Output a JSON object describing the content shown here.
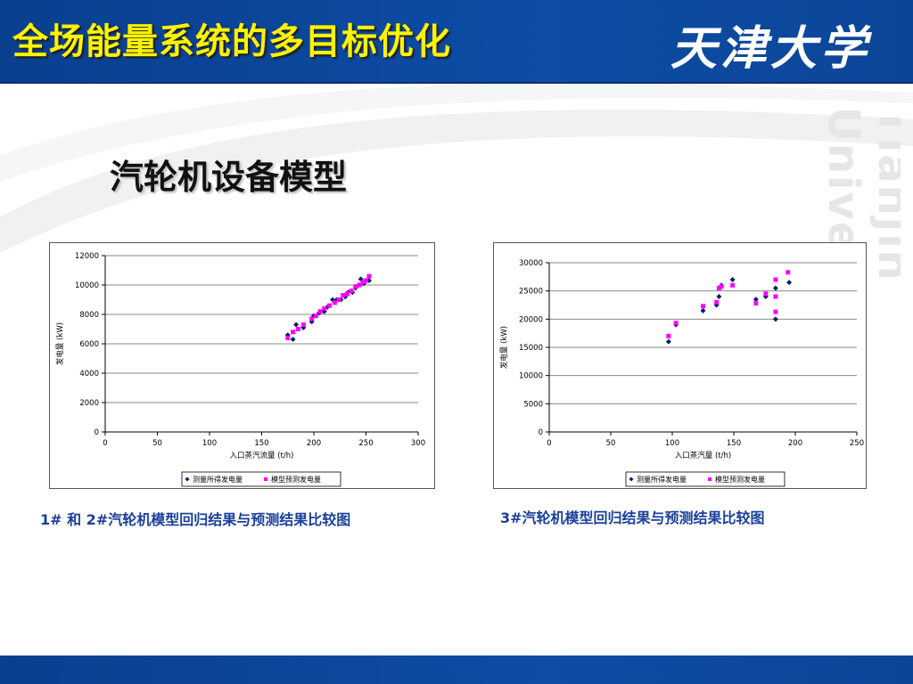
{
  "slide": {
    "title": "全场能量系统的多目标优化",
    "logo_text": "天津大学",
    "watermark_text": "Tianjin University",
    "subtitle": "汽轮机设备模型"
  },
  "captions": {
    "left": "1# 和 2#汽轮机模型回归结果与预测结果比较图",
    "right": "3#汽轮机模型回归结果与预测结果比较图"
  },
  "colors": {
    "header": "#0d4da6",
    "title": "#fff200",
    "caption": "#1a3f9c",
    "series_measured": "#0b1f6b",
    "series_predicted": "#ff00ff"
  },
  "chart_data": [
    {
      "type": "scatter",
      "title": "",
      "xlabel": "入口蒸汽流量 (t/h)",
      "ylabel": "发电量 (kW)",
      "xlim": [
        0,
        300
      ],
      "ylim": [
        0,
        12000
      ],
      "xticks": [
        0,
        50,
        100,
        150,
        200,
        250,
        300
      ],
      "yticks": [
        0,
        2000,
        4000,
        6000,
        8000,
        10000,
        12000
      ],
      "grid": "horizontal",
      "legend_position": "bottom-right",
      "series": [
        {
          "name": "测量所得发电量",
          "marker": "diamond",
          "points": [
            [
              175,
              6600
            ],
            [
              180,
              6300
            ],
            [
              183,
              7300
            ],
            [
              190,
              7100
            ],
            [
              198,
              7500
            ],
            [
              200,
              7900
            ],
            [
              205,
              8100
            ],
            [
              210,
              8200
            ],
            [
              213,
              8500
            ],
            [
              218,
              9000
            ],
            [
              222,
              9000
            ],
            [
              226,
              9000
            ],
            [
              230,
              9200
            ],
            [
              233,
              9500
            ],
            [
              237,
              9500
            ],
            [
              240,
              9800
            ],
            [
              243,
              10000
            ],
            [
              245,
              10400
            ],
            [
              248,
              10100
            ],
            [
              253,
              10300
            ]
          ]
        },
        {
          "name": "模型预测发电量",
          "marker": "square",
          "points": [
            [
              175,
              6400
            ],
            [
              180,
              6800
            ],
            [
              185,
              7000
            ],
            [
              190,
              7300
            ],
            [
              198,
              7700
            ],
            [
              202,
              7900
            ],
            [
              206,
              8200
            ],
            [
              210,
              8400
            ],
            [
              215,
              8600
            ],
            [
              220,
              8800
            ],
            [
              224,
              9000
            ],
            [
              228,
              9300
            ],
            [
              232,
              9400
            ],
            [
              236,
              9600
            ],
            [
              240,
              9900
            ],
            [
              244,
              10000
            ],
            [
              247,
              10200
            ],
            [
              250,
              10300
            ],
            [
              253,
              10600
            ]
          ]
        }
      ]
    },
    {
      "type": "scatter",
      "title": "",
      "xlabel": "入口蒸汽量 (t/h)",
      "ylabel": "发电量 (kW)",
      "xlim": [
        0,
        250
      ],
      "ylim": [
        0,
        30000
      ],
      "xticks": [
        0,
        50,
        100,
        150,
        200,
        250
      ],
      "yticks": [
        0,
        5000,
        10000,
        15000,
        20000,
        25000,
        30000
      ],
      "grid": "horizontal",
      "legend_position": "bottom-right",
      "series": [
        {
          "name": "测量所得发电量",
          "marker": "diamond",
          "points": [
            [
              97,
              16000
            ],
            [
              103,
              19000
            ],
            [
              125,
              21500
            ],
            [
              136,
              22500
            ],
            [
              138,
              24000
            ],
            [
              140,
              26000
            ],
            [
              149,
              27000
            ],
            [
              168,
              23500
            ],
            [
              176,
              24000
            ],
            [
              184,
              25500
            ],
            [
              184,
              20000
            ],
            [
              195,
              26500
            ]
          ]
        },
        {
          "name": "模型预测发电量",
          "marker": "square",
          "points": [
            [
              97,
              17000
            ],
            [
              103,
              19300
            ],
            [
              125,
              22300
            ],
            [
              136,
              23000
            ],
            [
              138,
              25500
            ],
            [
              140,
              25800
            ],
            [
              149,
              26000
            ],
            [
              168,
              22800
            ],
            [
              176,
              24500
            ],
            [
              184,
              24000
            ],
            [
              184,
              27000
            ],
            [
              184,
              21300
            ],
            [
              194,
              28300
            ]
          ]
        }
      ]
    }
  ]
}
